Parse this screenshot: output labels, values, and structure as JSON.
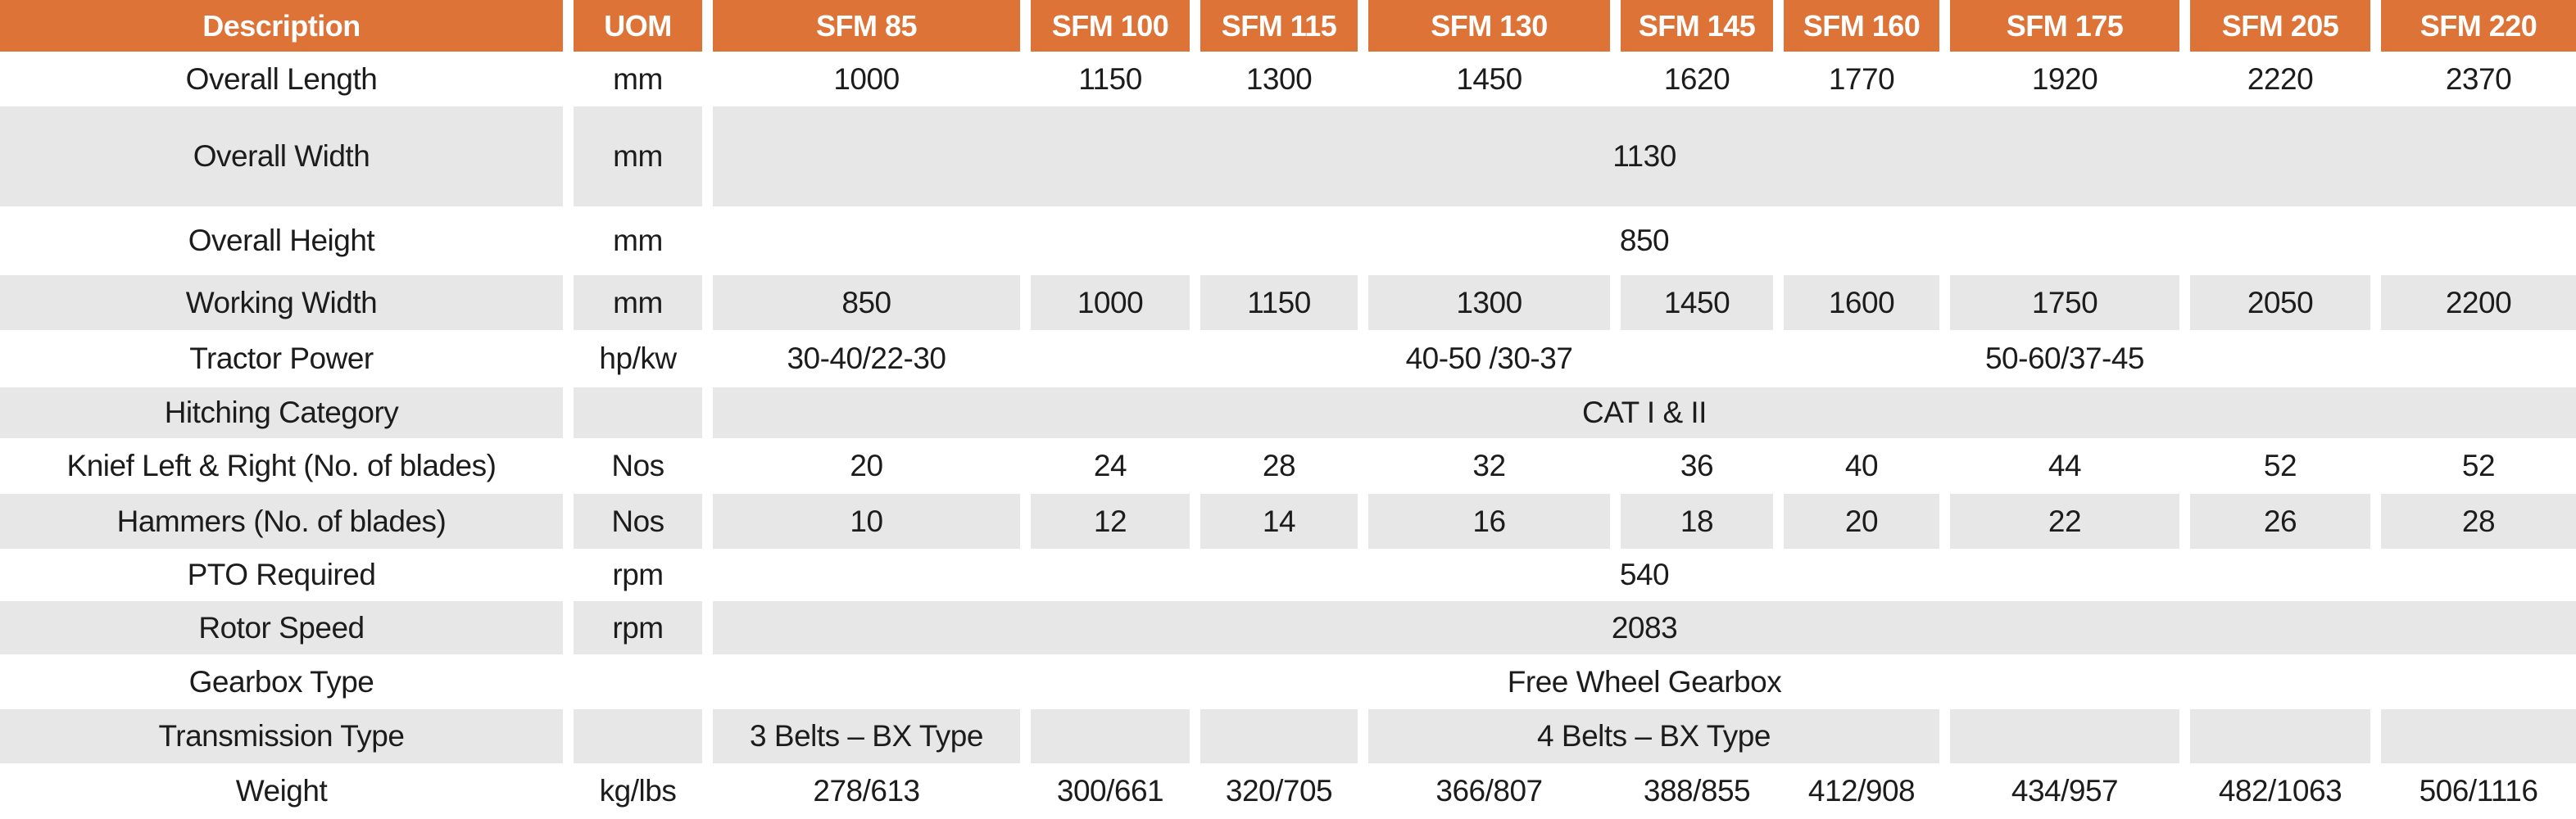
{
  "colors": {
    "header_bg": "#DD7336",
    "header_text": "#FFFFFF",
    "shaded_row_bg": "#E7E7E8",
    "plain_row_bg": "#FFFFFF",
    "cell_text": "#1C1C1C"
  },
  "table": {
    "header": {
      "description": "Description",
      "uom": "UOM",
      "models": [
        "SFM 85",
        "SFM 100",
        "SFM 115",
        "SFM 130",
        "SFM 145",
        "SFM 160",
        "SFM 175",
        "SFM 205",
        "SFM 220"
      ]
    },
    "rows": [
      {
        "label": "Overall Length",
        "uom": "mm",
        "shaded": false,
        "cells": [
          {
            "text": "1000"
          },
          {
            "text": "1150"
          },
          {
            "text": "1300"
          },
          {
            "text": "1450"
          },
          {
            "text": "1620"
          },
          {
            "text": "1770"
          },
          {
            "text": "1920"
          },
          {
            "text": "2220"
          },
          {
            "text": "2370"
          }
        ]
      },
      {
        "label": "Overall Width",
        "uom": "mm",
        "shaded": true,
        "cells": [
          {
            "text": "1130",
            "span": 9
          }
        ]
      },
      {
        "label": "Overall Height",
        "uom": "mm",
        "shaded": false,
        "cells": [
          {
            "text": "850",
            "span": 9
          }
        ]
      },
      {
        "label": "Working Width",
        "uom": "mm",
        "shaded": true,
        "cells": [
          {
            "text": "850"
          },
          {
            "text": "1000"
          },
          {
            "text": "1150"
          },
          {
            "text": "1300"
          },
          {
            "text": "1450"
          },
          {
            "text": "1600"
          },
          {
            "text": "1750"
          },
          {
            "text": "2050"
          },
          {
            "text": "2200"
          }
        ]
      },
      {
        "label": "Tractor Power",
        "uom": "hp/kw",
        "shaded": false,
        "cells": [
          {
            "text": "30-40/22-30"
          },
          {
            "text": ""
          },
          {
            "text": ""
          },
          {
            "text": "40-50 /30-37"
          },
          {
            "text": ""
          },
          {
            "text": ""
          },
          {
            "text": "50-60/37-45"
          },
          {
            "text": ""
          },
          {
            "text": ""
          }
        ]
      },
      {
        "label": "Hitching Category",
        "uom": "",
        "shaded": true,
        "cells": [
          {
            "text": "CAT I & II",
            "span": 9
          }
        ]
      },
      {
        "label": "Knief Left & Right (No. of blades)",
        "uom": "Nos",
        "shaded": false,
        "cells": [
          {
            "text": "20"
          },
          {
            "text": "24"
          },
          {
            "text": "28"
          },
          {
            "text": "32"
          },
          {
            "text": "36"
          },
          {
            "text": "40"
          },
          {
            "text": "44"
          },
          {
            "text": "52"
          },
          {
            "text": "52"
          }
        ]
      },
      {
        "label": "Hammers (No. of blades)",
        "uom": "Nos",
        "shaded": true,
        "cells": [
          {
            "text": "10"
          },
          {
            "text": "12"
          },
          {
            "text": "14"
          },
          {
            "text": "16"
          },
          {
            "text": "18"
          },
          {
            "text": "20"
          },
          {
            "text": "22"
          },
          {
            "text": "26"
          },
          {
            "text": "28"
          }
        ]
      },
      {
        "label": "PTO Required",
        "uom": "rpm",
        "shaded": false,
        "cells": [
          {
            "text": "540",
            "span": 9
          }
        ]
      },
      {
        "label": "Rotor Speed",
        "uom": "rpm",
        "shaded": true,
        "cells": [
          {
            "text": "2083",
            "span": 9
          }
        ]
      },
      {
        "label": "Gearbox Type",
        "uom": "",
        "shaded": false,
        "cells": [
          {
            "text": "Free Wheel Gearbox",
            "span": 9
          }
        ]
      },
      {
        "label": "Transmission Type",
        "uom": "",
        "shaded": true,
        "cells": [
          {
            "text": "3 Belts – BX Type"
          },
          {
            "text": ""
          },
          {
            "text": ""
          },
          {
            "text": "4 Belts – BX Type",
            "span": 3
          },
          {
            "text": ""
          },
          {
            "text": ""
          },
          {
            "text": ""
          }
        ]
      },
      {
        "label": "Weight",
        "uom": "kg/lbs",
        "shaded": false,
        "cells": [
          {
            "text": "278/613"
          },
          {
            "text": "300/661"
          },
          {
            "text": "320/705"
          },
          {
            "text": "366/807"
          },
          {
            "text": "388/855"
          },
          {
            "text": "412/908"
          },
          {
            "text": "434/957"
          },
          {
            "text": "482/1063"
          },
          {
            "text": "506/1116"
          }
        ]
      }
    ]
  }
}
